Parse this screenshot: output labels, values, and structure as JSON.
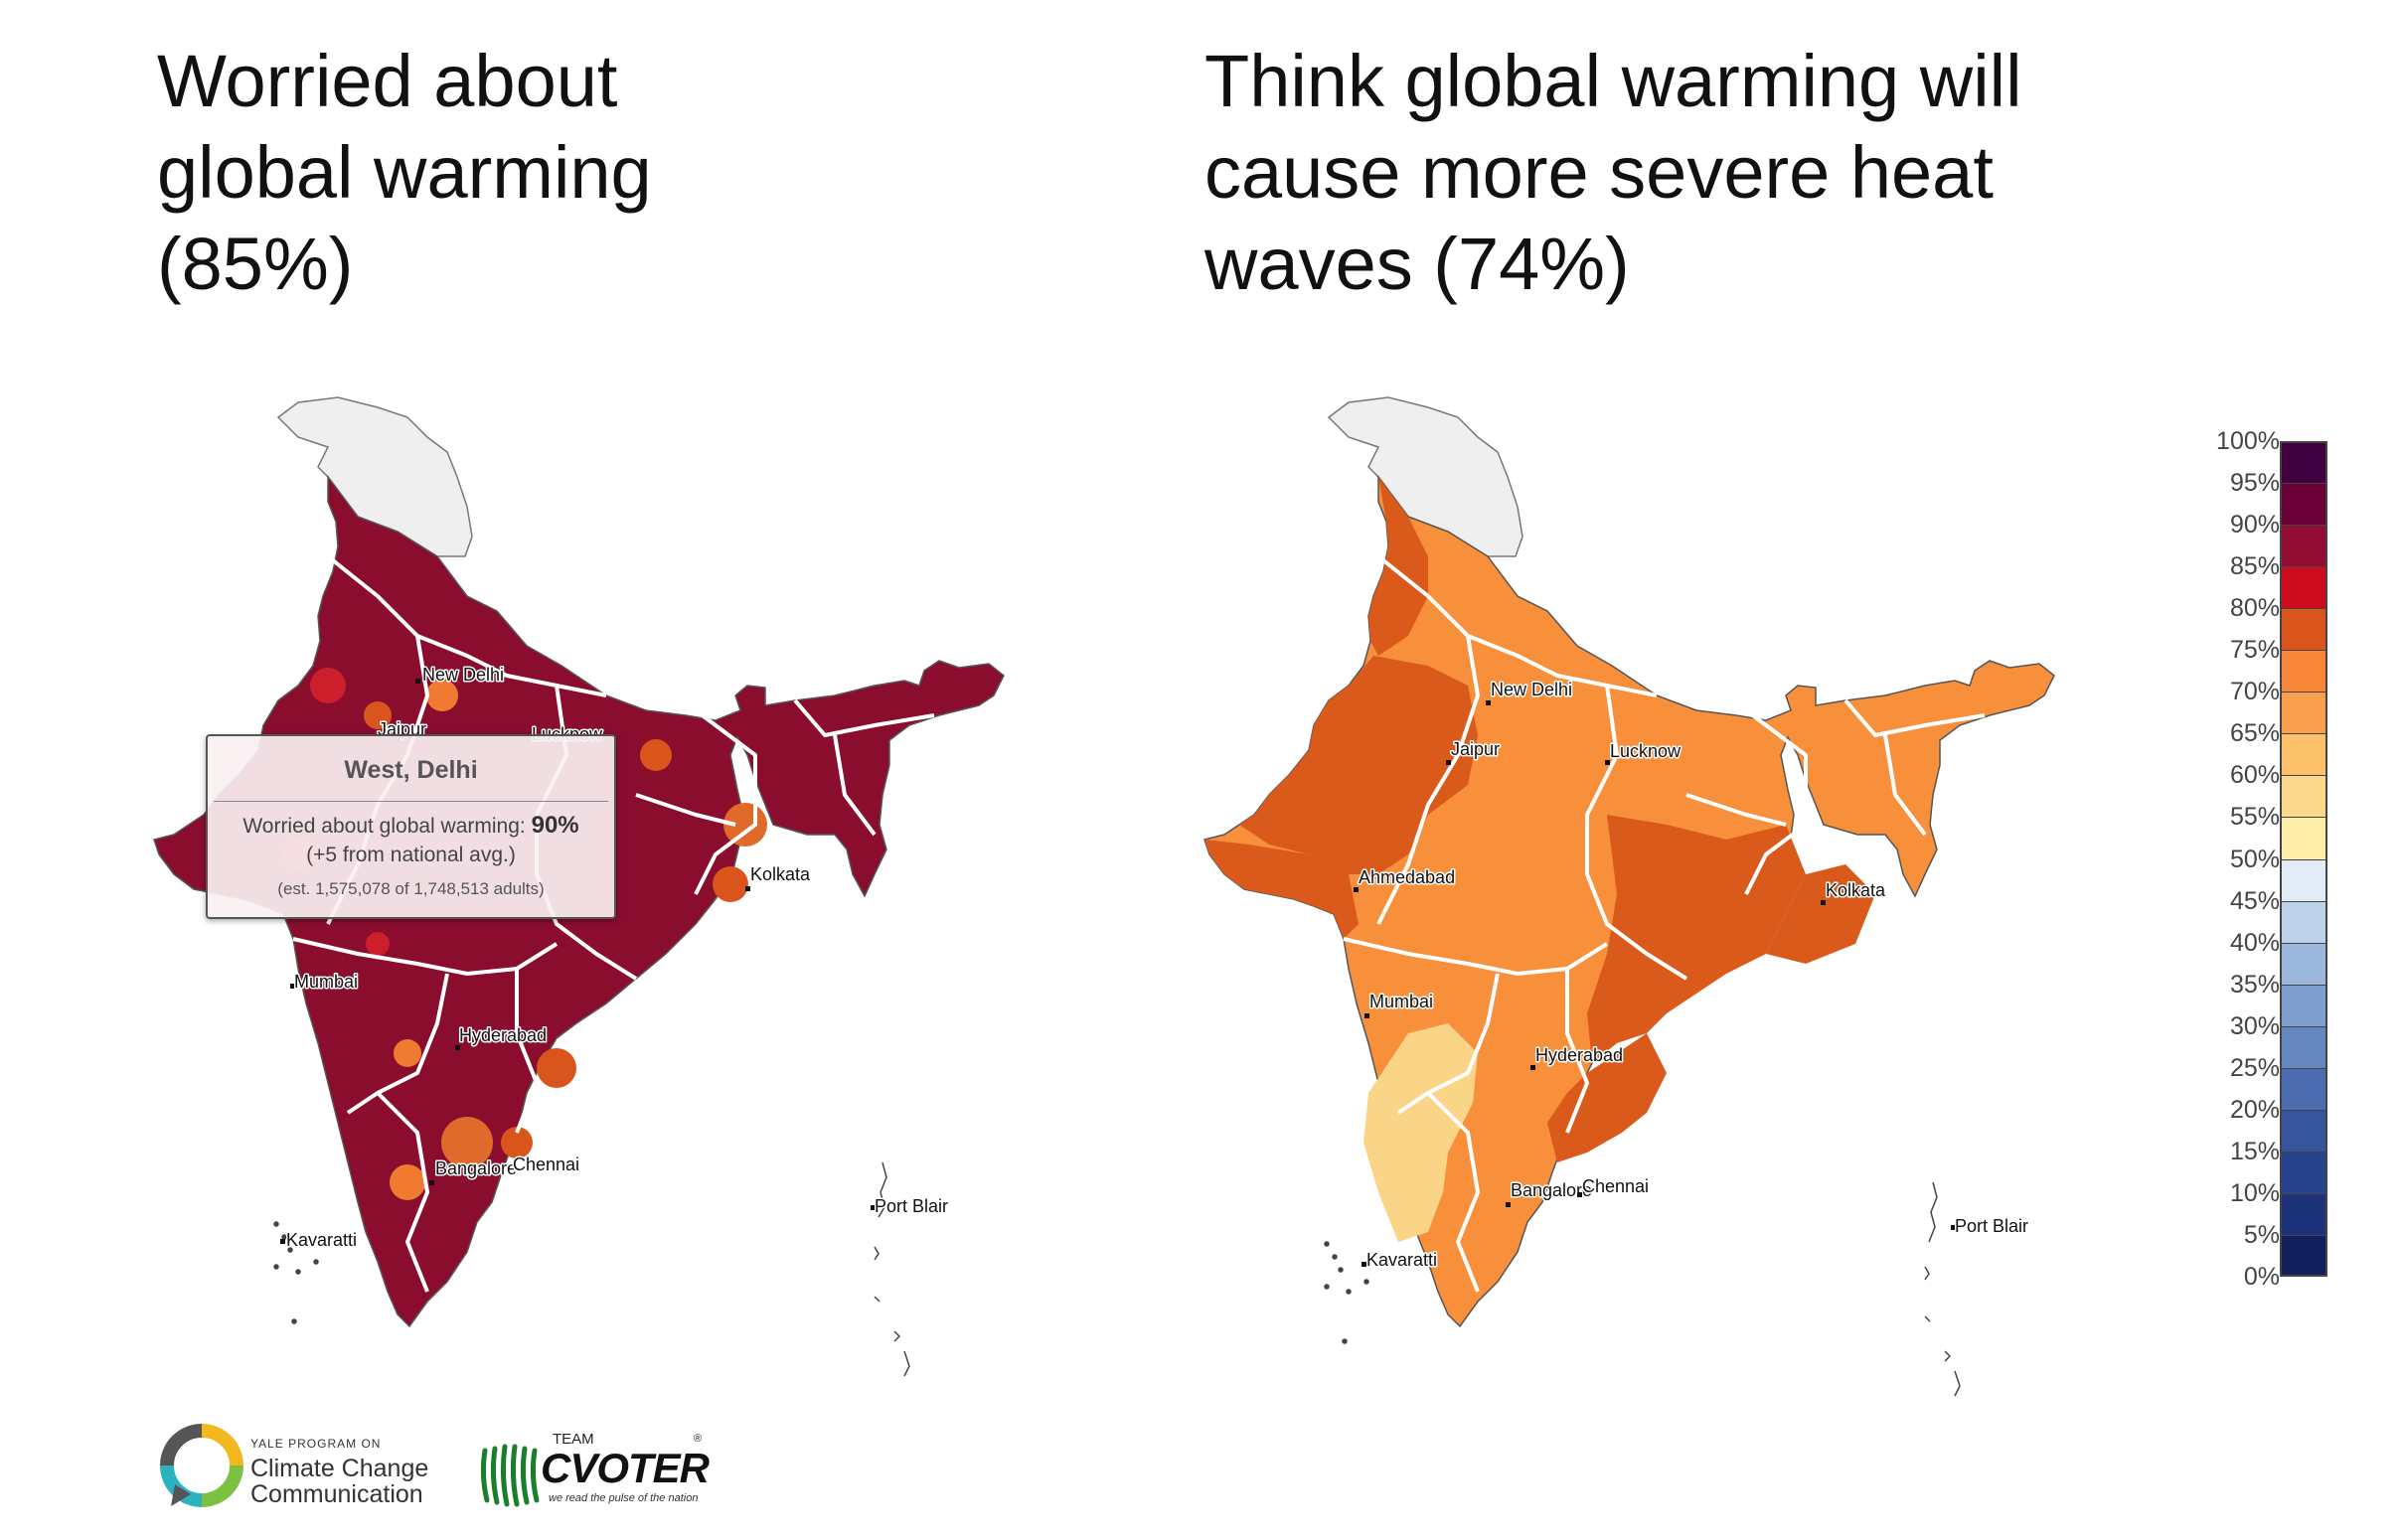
{
  "left_map": {
    "title_lines": [
      "Worried about",
      "global warming",
      "(85%)"
    ],
    "cities": [
      "New Delhi",
      "Jaipur",
      "Lucknow",
      "Kolkata",
      "Mumbai",
      "Hyderabad",
      "Bangalore",
      "Chennai",
      "Kavaratti",
      "Port Blair"
    ],
    "fill_color": "#8a0d2e",
    "tooltip": {
      "title": "West, Delhi",
      "label": "Worried about global warming:",
      "value": "90%",
      "diff": "(+5 from national avg.)",
      "estimate": "(est. 1,575,078 of 1,748,513 adults)"
    }
  },
  "right_map": {
    "title_lines": [
      "Think global warming will",
      "cause more severe heat",
      "waves (74%)"
    ],
    "cities": [
      "New Delhi",
      "Jaipur",
      "Lucknow",
      "Ahmedabad",
      "Kolkata",
      "Mumbai",
      "Hyderabad",
      "Bangalore",
      "Chennai",
      "Kavaratti",
      "Port Blair"
    ],
    "dark_color": "#d95a1b",
    "mid_color": "#f88f3a",
    "light_color": "#fbd587"
  },
  "legend": {
    "ticks": [
      "100%",
      "95%",
      "90%",
      "85%",
      "80%",
      "75%",
      "70%",
      "65%",
      "60%",
      "55%",
      "50%",
      "45%",
      "40%",
      "35%",
      "30%",
      "25%",
      "20%",
      "15%",
      "10%",
      "5%",
      "0%"
    ],
    "colors": [
      "#3f0040",
      "#6a0035",
      "#920c33",
      "#cc0b1f",
      "#d9551c",
      "#f7853a",
      "#f9a04e",
      "#fbc16b",
      "#fcd88c",
      "#fdeda8",
      "#e2ecf7",
      "#bed2e9",
      "#9bb7dc",
      "#7f9fcf",
      "#6587c0",
      "#4b6daf",
      "#36559d",
      "#27438d",
      "#1c337a",
      "#131f5c"
    ]
  },
  "logos": {
    "yale_small": "YALE PROGRAM ON",
    "yale_line1": "Climate Change",
    "yale_line2": "Communication",
    "cvoter_team": "TEAM",
    "cvoter_name": "CVOTER",
    "cvoter_tagline": "we read the pulse of the nation",
    "cvoter_reg": "®"
  }
}
